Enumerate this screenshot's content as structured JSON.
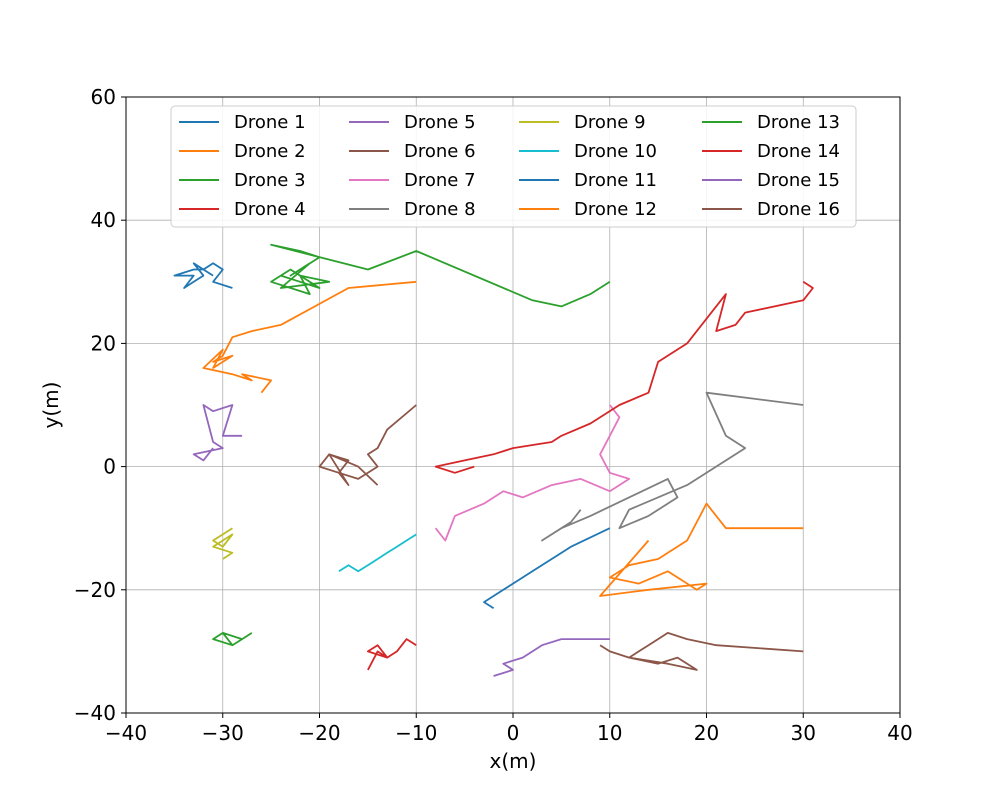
{
  "chart_data": {
    "type": "line",
    "title": "",
    "xlabel": "x(m)",
    "ylabel": "y(m)",
    "xlim": [
      -40,
      40
    ],
    "ylim": [
      -40,
      60
    ],
    "xticks": [
      -40,
      -30,
      -20,
      -10,
      0,
      10,
      20,
      30,
      40
    ],
    "yticks": [
      -40,
      -20,
      0,
      20,
      40,
      60
    ],
    "xtick_labels": [
      "−40",
      "−30",
      "−20",
      "−10",
      "0",
      "10",
      "20",
      "30",
      "40"
    ],
    "ytick_labels": [
      "−40",
      "−20",
      "0",
      "20",
      "40",
      "60"
    ],
    "grid": true,
    "legend_position": "top",
    "legend_columns": 4,
    "series": [
      {
        "name": "Drone 1",
        "color": "#1f77b4",
        "x": [
          -29,
          -31,
          -30,
          -31,
          -32,
          -33,
          -32,
          -33,
          -34,
          -33,
          -35,
          -33,
          -32,
          -31
        ],
        "y": [
          29,
          30,
          32,
          33,
          32,
          33,
          31,
          30,
          29,
          31,
          31,
          32,
          32,
          31
        ]
      },
      {
        "name": "Drone 2",
        "color": "#ff7f0e",
        "x": [
          -10,
          -17,
          -24,
          -27,
          -29,
          -30,
          -31,
          -29,
          -31,
          -30,
          -32,
          -29,
          -27,
          -28,
          -25,
          -26
        ],
        "y": [
          30,
          29,
          23,
          22,
          21,
          18,
          17,
          18,
          16,
          19,
          16,
          15,
          14,
          15,
          14,
          12
        ]
      },
      {
        "name": "Drone 3",
        "color": "#2ca02c",
        "x": [
          10,
          8,
          5,
          2,
          -10,
          -15,
          -25,
          -22,
          -20,
          -23,
          -21,
          -24,
          -19,
          -22,
          -21,
          -25,
          -23,
          -20,
          -22,
          -24
        ],
        "y": [
          30,
          28,
          26,
          27,
          35,
          32,
          36,
          35,
          34,
          31,
          33,
          29,
          30,
          31,
          28,
          30,
          32,
          29,
          30,
          31
        ]
      },
      {
        "name": "Drone 4",
        "color": "#d62728",
        "x": [
          -10,
          -11,
          -12,
          -13,
          -14,
          -15,
          -13,
          -14,
          -15
        ],
        "y": [
          -29,
          -28,
          -30,
          -31,
          -29,
          -30,
          -31,
          -30,
          -33
        ]
      },
      {
        "name": "Drone 5",
        "color": "#9467bd",
        "x": [
          -28,
          -30,
          -29,
          -31,
          -32,
          -31,
          -30,
          -33,
          -32,
          -31
        ],
        "y": [
          5,
          5,
          10,
          9,
          10,
          4,
          3,
          2,
          1,
          3
        ]
      },
      {
        "name": "Drone 6",
        "color": "#8c5649",
        "x": [
          -10,
          -13,
          -14,
          -15,
          -14,
          -16,
          -18,
          -17,
          -19,
          -20,
          -18,
          -17,
          -19,
          -16,
          -14
        ],
        "y": [
          10,
          6,
          3,
          2,
          0,
          -2,
          -1,
          1,
          2,
          0,
          -1,
          -3,
          2,
          0,
          -3
        ]
      },
      {
        "name": "Drone 7",
        "color": "#e377c2",
        "x": [
          -8,
          -7,
          -6,
          -3,
          -1,
          1,
          4,
          7,
          10,
          11,
          12,
          10,
          9,
          10,
          11,
          10
        ],
        "y": [
          -10,
          -12,
          -8,
          -6,
          -4,
          -5,
          -3,
          -2,
          -4,
          -3,
          -2,
          -1,
          2,
          5,
          8,
          10
        ]
      },
      {
        "name": "Drone 8",
        "color": "#7f7f7f",
        "x": [
          30,
          20,
          22,
          24,
          18,
          12,
          11,
          14,
          17,
          16,
          8,
          5,
          3,
          6,
          7
        ],
        "y": [
          10,
          12,
          5,
          3,
          -3,
          -7,
          -10,
          -8,
          -5,
          -2,
          -8,
          -10,
          -12,
          -9,
          -7
        ]
      },
      {
        "name": "Drone 9",
        "color": "#bcbd22",
        "x": [
          -29,
          -30,
          -31,
          -30,
          -29,
          -30,
          -31,
          -29,
          -30
        ],
        "y": [
          -10,
          -11,
          -12,
          -13,
          -11,
          -12,
          -13,
          -14,
          -15
        ]
      },
      {
        "name": "Drone 10",
        "color": "#17becf",
        "x": [
          -10,
          -11,
          -12,
          -13,
          -14,
          -15,
          -16,
          -17,
          -18
        ],
        "y": [
          -11,
          -12,
          -13,
          -14,
          -15,
          -16,
          -17,
          -16,
          -17
        ]
      },
      {
        "name": "Drone 11",
        "color": "#1f77b4",
        "x": [
          10,
          6,
          4,
          2,
          0,
          -1,
          -2,
          -3,
          -2
        ],
        "y": [
          -10,
          -13,
          -15,
          -17,
          -19,
          -20,
          -21,
          -22,
          -23
        ]
      },
      {
        "name": "Drone 12",
        "color": "#ff7f0e",
        "x": [
          30,
          22,
          20,
          18,
          15,
          12,
          10,
          13,
          16,
          19,
          20,
          14,
          9,
          14
        ],
        "y": [
          -10,
          -10,
          -6,
          -12,
          -15,
          -16,
          -18,
          -19,
          -17,
          -20,
          -19,
          -20,
          -21,
          -12
        ]
      },
      {
        "name": "Drone 13",
        "color": "#2ca02c",
        "x": [
          -27,
          -28,
          -29,
          -30,
          -31,
          -29,
          -28,
          -30
        ],
        "y": [
          -27,
          -28,
          -29,
          -27,
          -28,
          -29,
          -28,
          -27
        ]
      },
      {
        "name": "Drone 14",
        "color": "#d62728",
        "x": [
          30,
          31,
          30,
          24,
          23,
          21,
          22,
          18,
          15,
          14,
          11,
          8,
          5,
          4,
          0,
          -2,
          -5,
          -8,
          -6,
          -4
        ],
        "y": [
          30,
          29,
          27,
          25,
          23,
          22,
          28,
          20,
          17,
          12,
          10,
          7,
          5,
          4,
          3,
          2,
          1,
          0,
          -1,
          0
        ]
      },
      {
        "name": "Drone 15",
        "color": "#9467bd",
        "x": [
          10,
          5,
          3,
          1,
          -1,
          0,
          -2
        ],
        "y": [
          -28,
          -28,
          -29,
          -31,
          -32,
          -33,
          -34
        ]
      },
      {
        "name": "Drone 16",
        "color": "#8c5649",
        "x": [
          30,
          21,
          18,
          16,
          14,
          13,
          12,
          15,
          17,
          19,
          16,
          12,
          10,
          9
        ],
        "y": [
          -30,
          -29,
          -28,
          -27,
          -29,
          -30,
          -31,
          -32,
          -31,
          -33,
          -32,
          -31,
          -30,
          -29
        ]
      }
    ]
  }
}
